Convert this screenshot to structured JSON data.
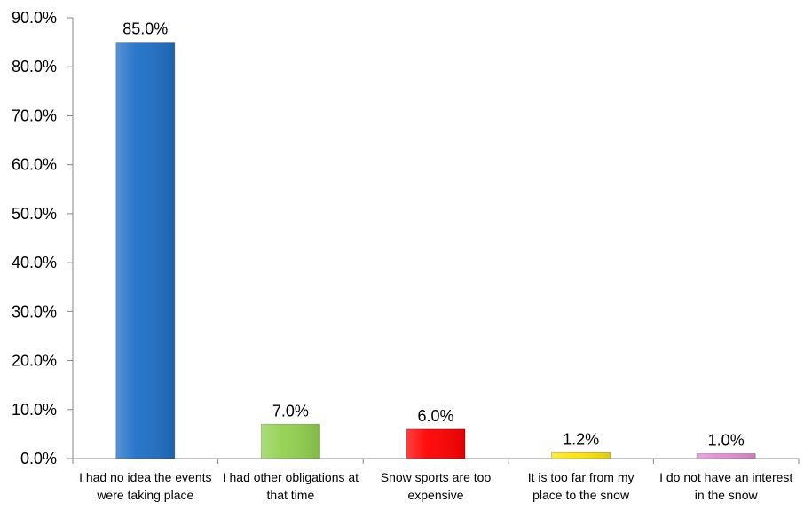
{
  "chart_data": {
    "type": "bar",
    "categories": [
      "I had no idea the events were taking place",
      "I had other obligations at that time",
      "Snow sports are too expensive",
      "It is too far from my place to the snow",
      "I do not have an interest in the snow"
    ],
    "category_lines": [
      [
        "I had no idea the events",
        "were taking place"
      ],
      [
        "I had other obligations at",
        "that time"
      ],
      [
        "Snow sports are too",
        "expensive"
      ],
      [
        "It is too far from my",
        "place to the snow"
      ],
      [
        "I do not have an interest",
        "in the snow"
      ]
    ],
    "values": [
      85.0,
      7.0,
      6.0,
      1.2,
      1.0
    ],
    "data_labels": [
      "85.0%",
      "7.0%",
      "6.0%",
      "1.2%",
      "1.0%"
    ],
    "bar_colors": [
      "#1f6fc5",
      "#92d050",
      "#ff0000",
      "#ffe500",
      "#e88ad4"
    ],
    "ylim": [
      0,
      90
    ],
    "yticks": [
      0,
      10,
      20,
      30,
      40,
      50,
      60,
      70,
      80,
      90
    ],
    "ytick_labels": [
      "0.0%",
      "10.0%",
      "20.0%",
      "30.0%",
      "40.0%",
      "50.0%",
      "60.0%",
      "70.0%",
      "80.0%",
      "90.0%"
    ],
    "title": "",
    "xlabel": "",
    "ylabel": "",
    "grid": false,
    "legend": "none"
  }
}
